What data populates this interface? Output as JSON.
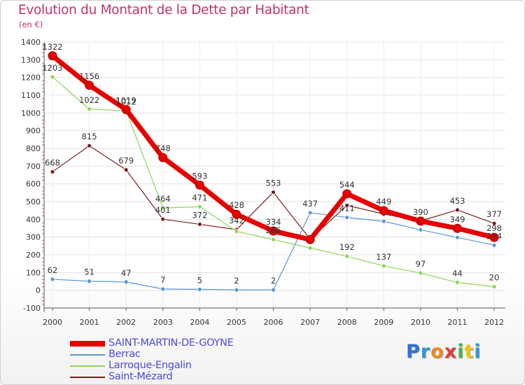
{
  "title": "Evolution du Montant de la Dette par Habitant",
  "subtitle": "(en €)",
  "logo": {
    "text": "Proxiti",
    "letters": [
      "P",
      "r",
      "o",
      "x",
      "i",
      "t",
      "i"
    ],
    "colors": [
      "#2f6fd6",
      "#2f9ad6",
      "#f08a1c",
      "#e23a3a",
      "#4bb34b",
      "#f0c419",
      "#2f9ad6"
    ]
  },
  "chart_data": {
    "type": "line",
    "title": "Evolution du Montant de la Dette par Habitant",
    "ylabel": "(en €)",
    "xlabel": "",
    "ylim": [
      -100,
      1400
    ],
    "yticks": [
      "-100",
      "0",
      "100",
      "200",
      "300",
      "400",
      "500",
      "600",
      "700",
      "800",
      "900",
      "1000",
      "1100",
      "1200",
      "1300",
      "1400"
    ],
    "categories": [
      "2000",
      "2001",
      "2002",
      "2003",
      "2004",
      "2005",
      "2006",
      "2007",
      "2008",
      "2009",
      "2010",
      "2011",
      "2012"
    ],
    "series": [
      {
        "name": "SAINT-MARTIN-DE-GOYNE",
        "color": "#e60000",
        "width": 7,
        "marker": 6,
        "values": [
          1322,
          1156,
          1019,
          748,
          593,
          428,
          334,
          286,
          544,
          449,
          390,
          349,
          298
        ],
        "labels": [
          "1322",
          "1156",
          "1019",
          "748",
          "593",
          "428",
          "334",
          "",
          "544",
          "449",
          "390",
          "349",
          "298"
        ]
      },
      {
        "name": "Berrac",
        "color": "#5a96cf",
        "width": 1.2,
        "marker": 3,
        "values": [
          62,
          51,
          47,
          7,
          5,
          2,
          2,
          437,
          411,
          389,
          341,
          298,
          254
        ],
        "labels": [
          "62",
          "51",
          "47",
          "7",
          "5",
          "2",
          "2",
          "437",
          "411",
          "",
          "",
          "",
          "254"
        ]
      },
      {
        "name": "Larroque-Engalin",
        "color": "#8fd45a",
        "width": 1.2,
        "marker": 3,
        "values": [
          1203,
          1022,
          1012,
          464,
          471,
          332,
          286,
          238,
          192,
          137,
          97,
          44,
          20
        ],
        "labels": [
          "1203",
          "1022",
          "1012",
          "464",
          "471",
          "",
          "286",
          "",
          "192",
          "137",
          "97",
          "44",
          "20"
        ]
      },
      {
        "name": "Saint-Mézard",
        "color": "#7a1e1e",
        "width": 1.2,
        "marker": 3,
        "values": [
          668,
          815,
          679,
          401,
          372,
          342,
          553,
          288,
          479,
          430,
          391,
          453,
          377
        ],
        "labels": [
          "668",
          "815",
          "679",
          "401",
          "372",
          "342",
          "553",
          "",
          "",
          "",
          "",
          "453",
          "377"
        ]
      }
    ]
  }
}
